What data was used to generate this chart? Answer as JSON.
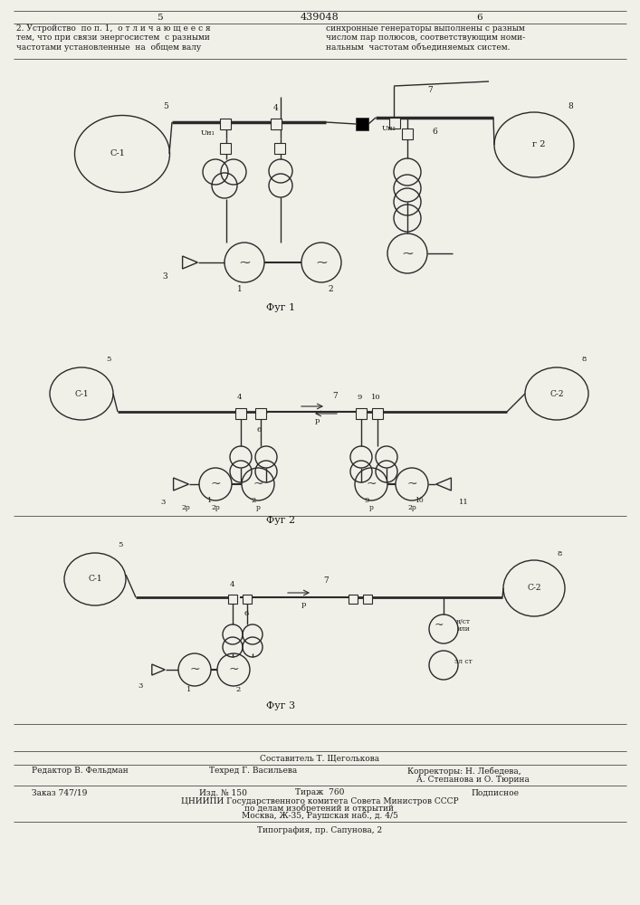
{
  "title": "439048",
  "bg_color": "#f0efe8",
  "text_color": "#1a1a1a",
  "line_color": "#2a2a2a",
  "fig1_label": "Фуг 1",
  "fig2_label": "Фуг 2",
  "fig3_label": "Фуг 3",
  "left_col_lines": [
    "2. Устройство  по п. 1,  о т л и ч а ю щ е е с я",
    "тем, что при связи энергосистем  с разными",
    "частотами установленные  на  общем валу"
  ],
  "right_col_lines": [
    "синхронные генераторы выполнены с разным",
    "числом пар полюсов, соответствующим номи-",
    "нальным  частотам объединяемых систем."
  ]
}
